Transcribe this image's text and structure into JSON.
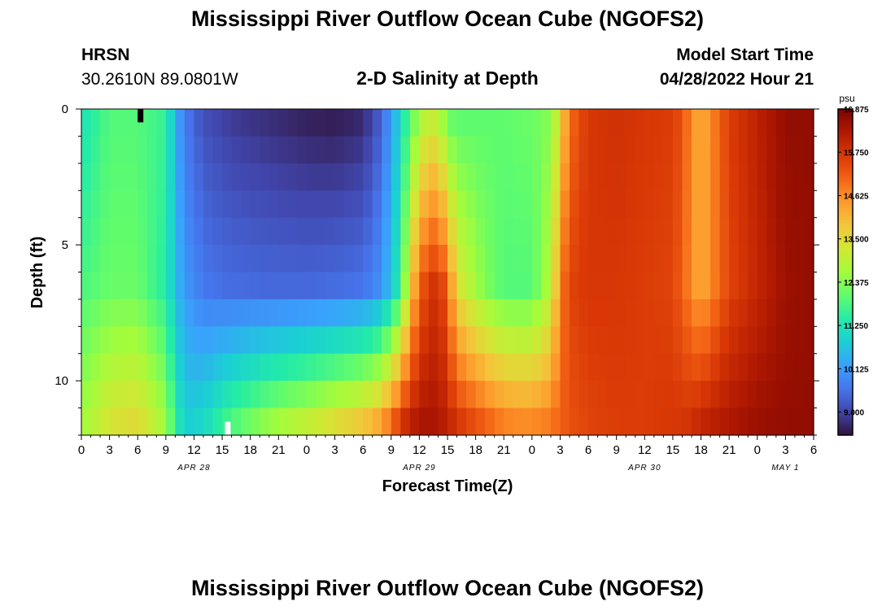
{
  "page": {
    "title": "Mississippi River Outflow Ocean Cube (NGOFS2)",
    "title_repeat": "Mississippi River Outflow Ocean Cube (NGOFS2)",
    "station": "HRSN",
    "coordinates": "30.2610N  89.0801W",
    "subtitle": "2-D Salinity at Depth",
    "model_start_label": "Model Start Time",
    "model_start_value": "04/28/2022 Hour 21"
  },
  "chart_data": {
    "type": "heatmap",
    "title": "2-D Salinity at Depth",
    "xlabel": "Forecast Time(Z)",
    "ylabel": "Depth (ft)",
    "x_range_hours": [
      0,
      78
    ],
    "x_tick_step_hours": 3,
    "x_tick_labels": [
      "0",
      "3",
      "6",
      "9",
      "12",
      "15",
      "18",
      "21",
      "0",
      "3",
      "6",
      "9",
      "12",
      "15",
      "18",
      "21",
      "0",
      "3",
      "6",
      "9",
      "12",
      "15",
      "18",
      "21",
      "0",
      "3",
      "6"
    ],
    "date_labels": [
      {
        "text": "APR 28",
        "hour": 12
      },
      {
        "text": "APR 29",
        "hour": 36
      },
      {
        "text": "APR 30",
        "hour": 60
      },
      {
        "text": "MAY 1",
        "hour": 75
      }
    ],
    "y_range_ft": [
      0,
      12
    ],
    "y_tick_labels": [
      "0",
      "5",
      "10"
    ],
    "y_tick_values": [
      0,
      5,
      10
    ],
    "y_minor_step_ft": 1,
    "depth_layers": 12,
    "colorbar": {
      "unit": "psu",
      "min": 8.4,
      "max": 16.875,
      "tick_labels": [
        "16.875",
        "15.750",
        "14.625",
        "13.500",
        "12.375",
        "11.250",
        "10.125",
        "9.000"
      ],
      "tick_values": [
        16.875,
        15.75,
        14.625,
        13.5,
        12.375,
        11.25,
        10.125,
        9.0
      ],
      "colormap": [
        "#30123b",
        "#4145ab",
        "#4675ed",
        "#39a2fc",
        "#1bcfd4",
        "#24eca6",
        "#61fc6c",
        "#a4fc3b",
        "#d1e834",
        "#f3c63a",
        "#fe9b2d",
        "#f36315",
        "#d93806",
        "#b11901",
        "#7a0402"
      ]
    },
    "markers": [
      {
        "hour": 6.3,
        "depth_ft": 0.25,
        "color": "#000000"
      },
      {
        "hour": 15.6,
        "depth_ft": 11.75,
        "color": "#ffffff"
      }
    ],
    "timeseries_keypoints_hours": [
      0,
      3,
      6,
      9,
      10,
      11,
      13,
      16,
      20,
      24,
      27,
      30,
      32,
      34,
      35,
      36,
      37,
      38,
      39,
      40,
      43,
      45,
      47,
      48,
      50,
      51,
      52,
      54,
      57,
      60,
      63,
      64,
      65,
      66,
      67,
      69,
      72,
      75,
      78
    ],
    "salinity_profiles_psu": {
      "depth_0.5ft": [
        11.2,
        11.9,
        11.9,
        11.6,
        10.4,
        9.7,
        9.15,
        8.9,
        8.75,
        8.6,
        8.55,
        8.7,
        9.4,
        11.0,
        12.0,
        12.6,
        13.3,
        13.0,
        12.2,
        12.0,
        12.0,
        12.0,
        12.1,
        12.1,
        12.4,
        13.5,
        15.0,
        15.7,
        15.8,
        15.7,
        15.6,
        15.3,
        14.6,
        14.2,
        14.6,
        15.6,
        16.1,
        16.6,
        16.6
      ],
      "depth_6.5ft": [
        11.8,
        12.1,
        12.1,
        11.4,
        10.6,
        10.1,
        9.65,
        9.5,
        9.45,
        9.45,
        9.5,
        9.6,
        10.0,
        11.5,
        13.6,
        15.0,
        15.7,
        15.8,
        15.1,
        13.4,
        12.3,
        11.9,
        11.9,
        11.9,
        12.9,
        14.7,
        15.5,
        15.7,
        15.7,
        15.6,
        15.5,
        15.1,
        14.6,
        14.2,
        14.6,
        15.5,
        16.0,
        16.5,
        16.6
      ],
      "depth_11.5ft": [
        12.6,
        13.3,
        13.5,
        12.6,
        11.5,
        10.8,
        11.0,
        11.8,
        12.5,
        13.0,
        13.4,
        13.8,
        14.3,
        15.6,
        16.1,
        16.3,
        16.4,
        16.3,
        16.1,
        15.7,
        15.1,
        14.7,
        14.6,
        14.6,
        14.8,
        15.1,
        15.3,
        15.5,
        15.6,
        15.6,
        15.7,
        15.7,
        15.8,
        16.0,
        16.1,
        16.3,
        16.5,
        16.6,
        16.6
      ]
    }
  }
}
